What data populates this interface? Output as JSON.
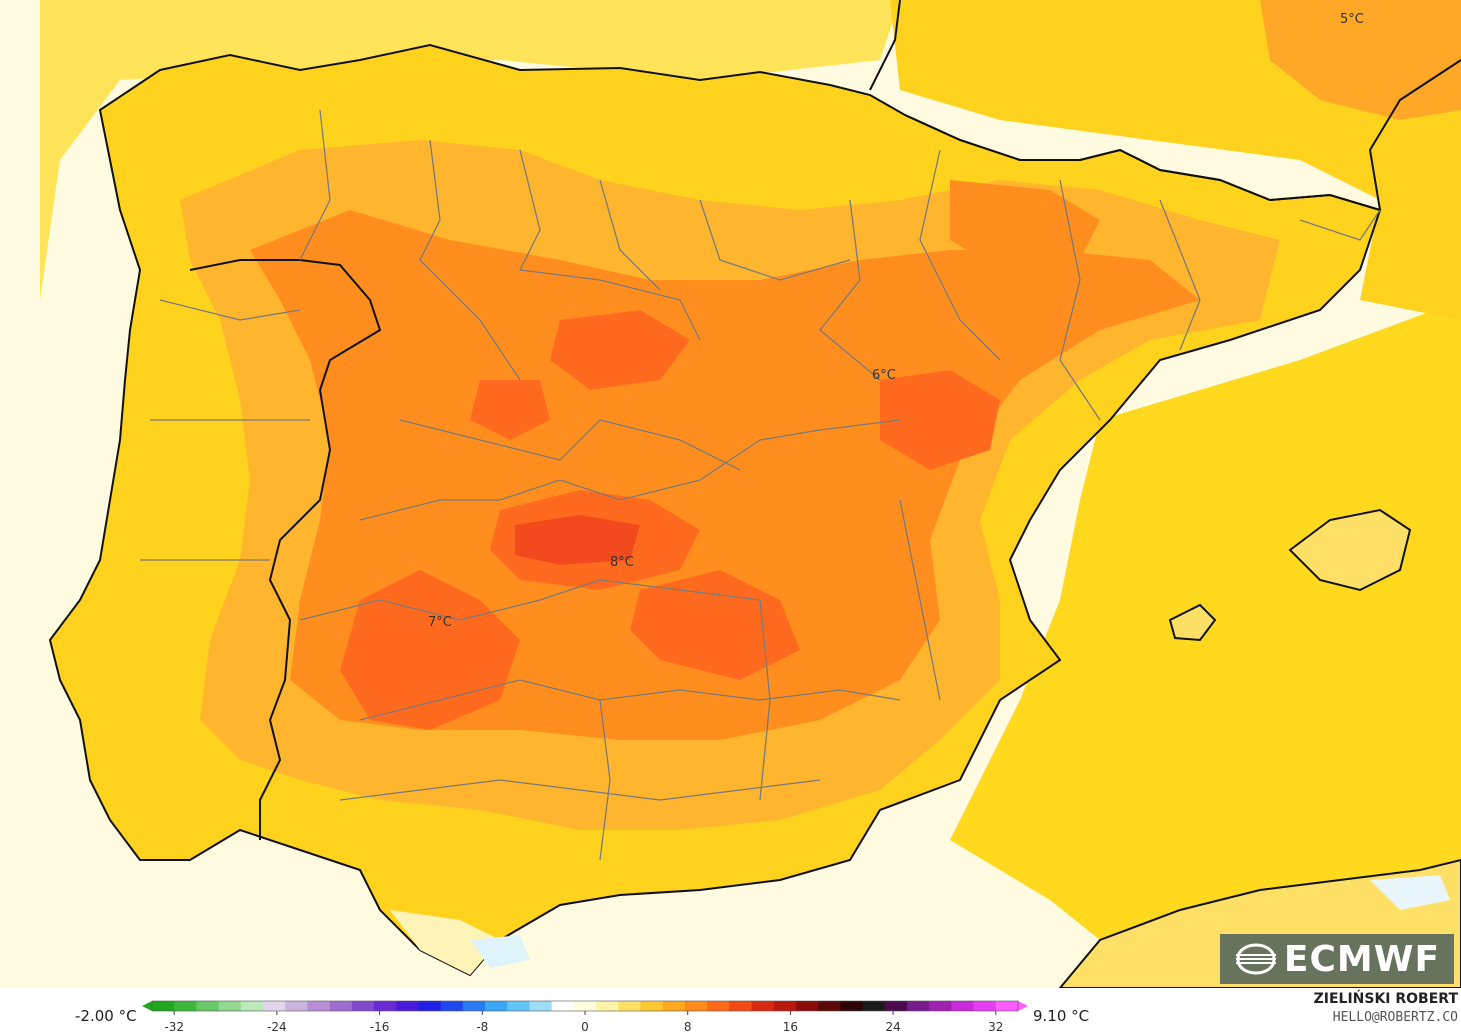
{
  "map": {
    "ocean_color": "#FFFBE0",
    "land_base_color": "#FFD21E",
    "labels": [
      {
        "text": "5°C"
      },
      {
        "text": "6°C"
      },
      {
        "text": "8°C"
      },
      {
        "text": "7°C"
      }
    ]
  },
  "logo": {
    "text": "ECMWF",
    "icon": "ecmwf-wave-icon"
  },
  "legend": {
    "min_label": "-2.00 °C",
    "max_label": "9.10 °C",
    "ticks": [
      "-32",
      "-24",
      "-16",
      "-8",
      "0",
      "8",
      "16",
      "24",
      "32"
    ],
    "colors": [
      "#1fa81f",
      "#3cb83c",
      "#68c868",
      "#92d892",
      "#bce8bc",
      "#e2d6ea",
      "#cdb3e0",
      "#b68fd6",
      "#9e6cd0",
      "#8349cc",
      "#6a2bd2",
      "#4b1ad8",
      "#1f1fe8",
      "#1f49ee",
      "#2a7af2",
      "#3aa6f4",
      "#62c4f6",
      "#9edcf8",
      "#ffffff",
      "#ffffe0",
      "#fff4a8",
      "#ffe066",
      "#ffc830",
      "#ffa820",
      "#ff8a1c",
      "#ff6a18",
      "#f24a14",
      "#d82a10",
      "#b8180e",
      "#8c0c0c",
      "#5c0808",
      "#2c0404",
      "#1a1a1a",
      "#4b0a4b",
      "#7a1a8a",
      "#a020b0",
      "#c82ad8",
      "#e63ef0",
      "#ff5cff"
    ]
  },
  "credit": {
    "name": "ZIELIŃSKI ROBERT",
    "email": "HELLO@ROBERTZ.CO"
  }
}
